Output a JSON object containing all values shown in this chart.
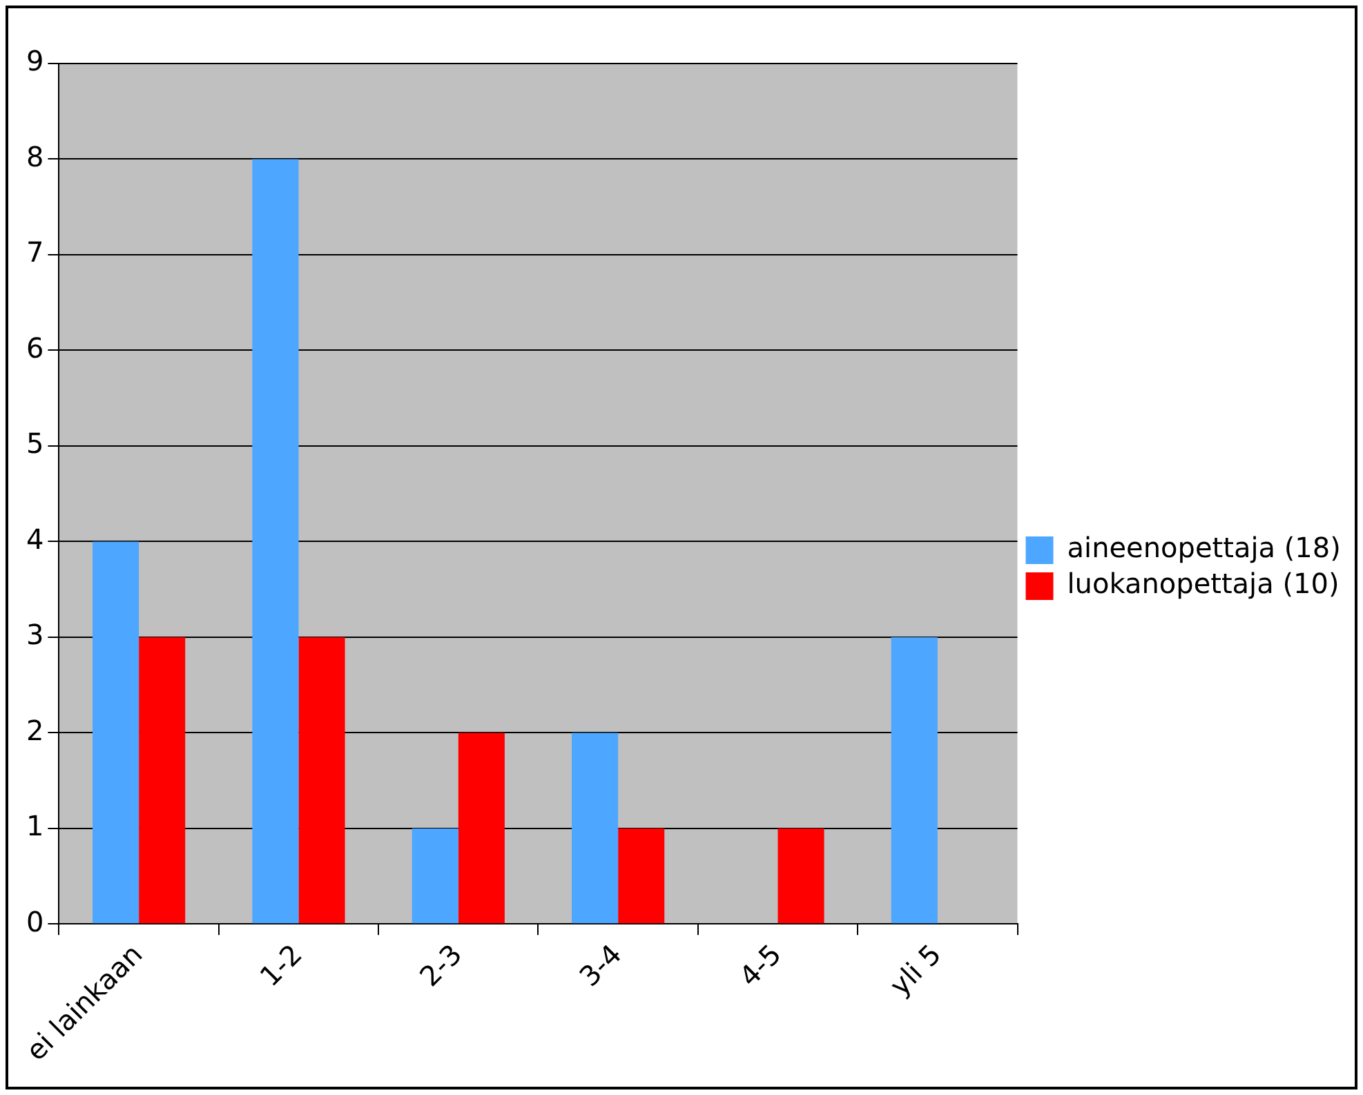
{
  "chart_data": {
    "type": "bar",
    "categories": [
      "ei lainkaan",
      "1-2",
      "2-3",
      "3-4",
      "4-5",
      "yli 5"
    ],
    "series": [
      {
        "name": "aineenopettaja (18)",
        "color": "#4da6ff",
        "values": [
          4,
          8,
          1,
          2,
          0,
          3
        ]
      },
      {
        "name": "luokanopettaja (10)",
        "color": "#ff0000",
        "values": [
          3,
          3,
          2,
          1,
          1,
          0
        ]
      }
    ],
    "ylim": [
      0,
      9
    ],
    "yticks": [
      0,
      1,
      2,
      3,
      4,
      5,
      6,
      7,
      8,
      9
    ],
    "grid": "y",
    "legend": "right"
  }
}
